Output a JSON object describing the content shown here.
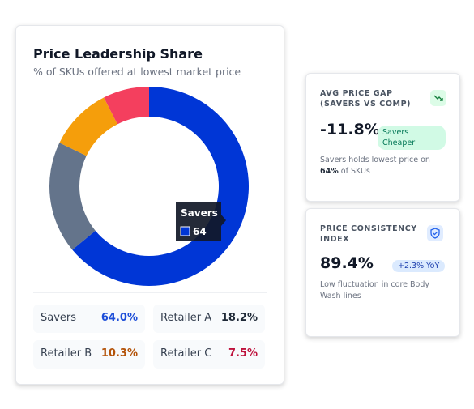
{
  "chart_data": {
    "type": "pie",
    "donut": true,
    "title": "Price Leadership Share",
    "subtitle": "% of SKUs offered at lowest market price",
    "categories": [
      "Savers",
      "Retailer A",
      "Retailer B",
      "Retailer C"
    ],
    "values": [
      64,
      18.2,
      10.3,
      7.5
    ],
    "value_labels": [
      "64.0%",
      "18.2%",
      "10.3%",
      "7.5%"
    ],
    "colors": [
      "#0036d6",
      "#64748b",
      "#f59e0b",
      "#f43f5e"
    ],
    "label_colors": [
      "#1d4ed8",
      "#1f2937",
      "#b45309",
      "#be123c"
    ],
    "tooltip": {
      "category": "Savers",
      "value": 64
    }
  },
  "cards": [
    {
      "title": "AVG PRICE GAP (SAVERS VS COMP)",
      "value": "-11.8%",
      "badge": "Savers Cheaper",
      "note": [
        "Savers holds lowest price on",
        "64%",
        "of SKUs"
      ]
    },
    {
      "title": "PRICE CONSISTENCY INDEX",
      "value": "89.4%",
      "badge": "+2.3% YoY",
      "note": [
        "Low fluctuation in core Body Wash lines"
      ]
    }
  ]
}
